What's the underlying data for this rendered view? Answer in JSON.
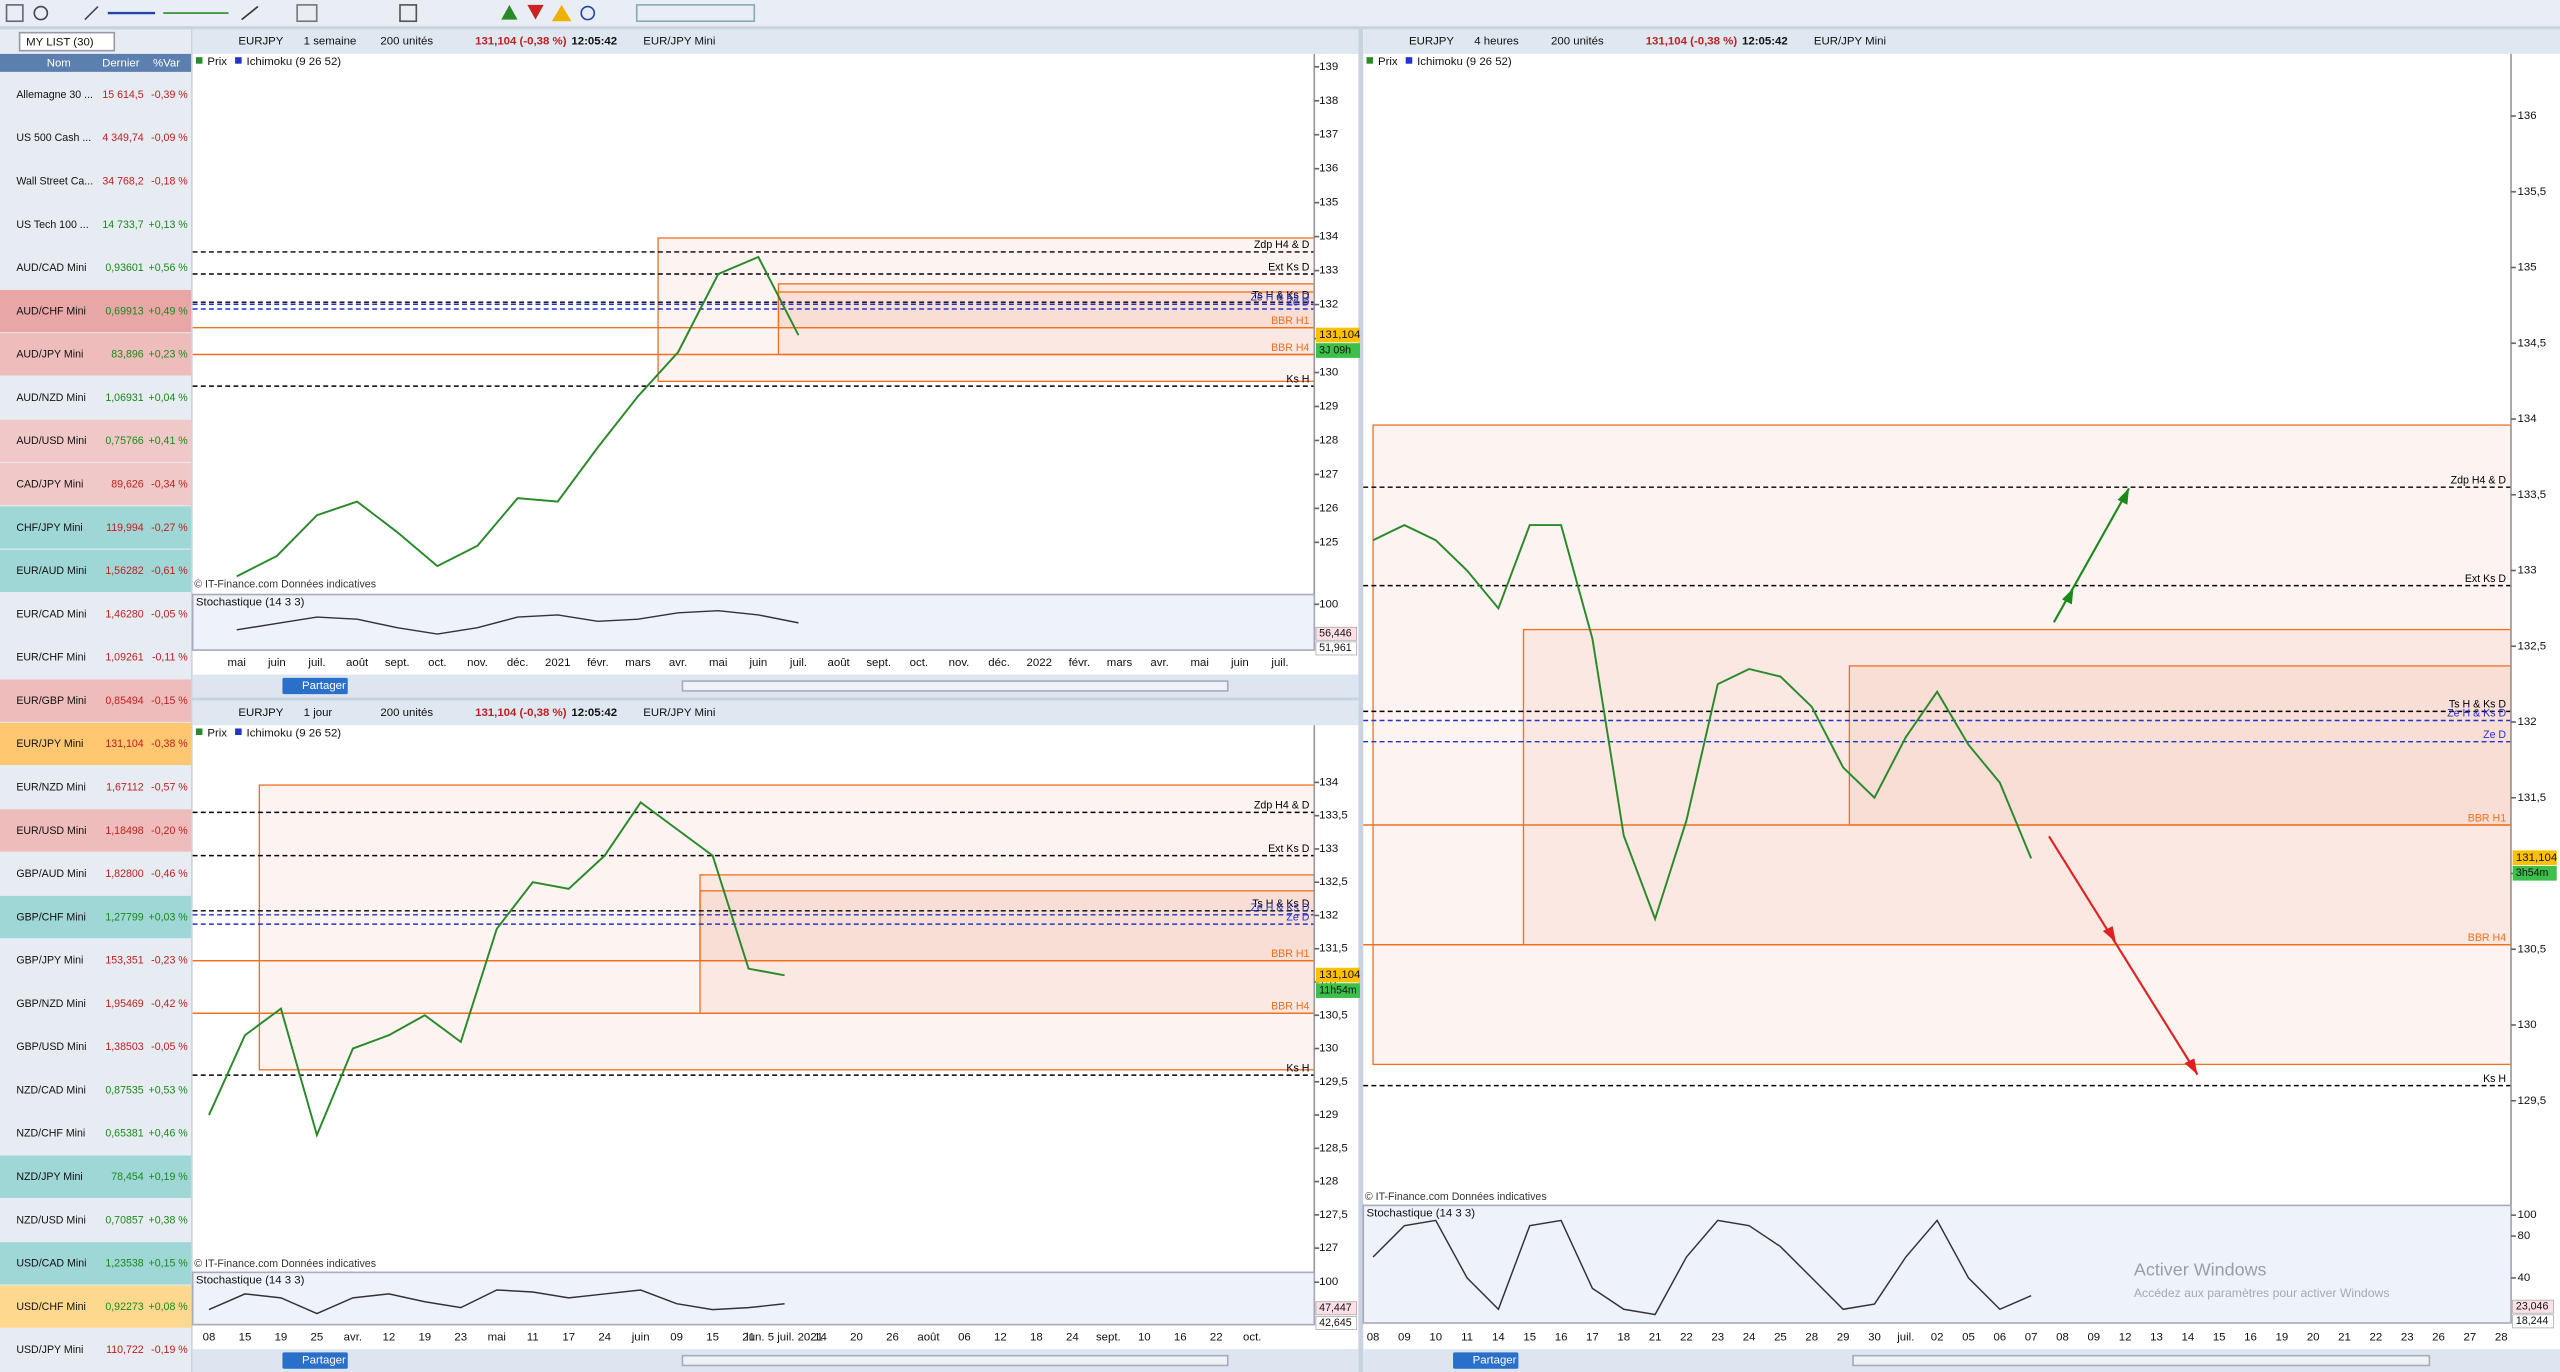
{
  "watchlist": {
    "title": "MY LIST (30)",
    "columns": [
      "Nom",
      "Dernier",
      "%Var"
    ],
    "rows": [
      {
        "name": "Allemagne 30 ...",
        "last": "15 614,5",
        "change": "-0,39 %",
        "color": "#e6ecf2"
      },
      {
        "name": "US 500 Cash ...",
        "last": "4 349,74",
        "change": "-0,09 %",
        "color": "#e6ecf2"
      },
      {
        "name": "Wall Street Ca...",
        "last": "34 768,2",
        "change": "-0,18 %",
        "color": "#e6ecf2"
      },
      {
        "name": "US Tech 100 ...",
        "last": "14 733,7",
        "change": "+0,13 %",
        "color": "#e6ecf2"
      },
      {
        "name": "AUD/CAD Mini",
        "last": "0,93601",
        "change": "+0,56 %",
        "color": "#e6ecf2"
      },
      {
        "name": "AUD/CHF Mini",
        "last": "0,69913",
        "change": "+0,49 %",
        "color": "#e8a6a6"
      },
      {
        "name": "AUD/JPY Mini",
        "last": "83,896",
        "change": "+0,23 %",
        "color": "#efbcbc"
      },
      {
        "name": "AUD/NZD Mini",
        "last": "1,06931",
        "change": "+0,04 %",
        "color": "#e6ecf2"
      },
      {
        "name": "AUD/USD Mini",
        "last": "0,75766",
        "change": "+0,41 %",
        "color": "#f0c8c8"
      },
      {
        "name": "CAD/JPY Mini",
        "last": "89,626",
        "change": "-0,34 %",
        "color": "#f0c8c8"
      },
      {
        "name": "CHF/JPY Mini",
        "last": "119,994",
        "change": "-0,27 %",
        "color": "#9fd6d6"
      },
      {
        "name": "EUR/AUD Mini",
        "last": "1,56282",
        "change": "-0,61 %",
        "color": "#9fd6d6"
      },
      {
        "name": "EUR/CAD Mini",
        "last": "1,46280",
        "change": "-0,05 %",
        "color": "#e6ecf2"
      },
      {
        "name": "EUR/CHF Mini",
        "last": "1,09261",
        "change": "-0,11 %",
        "color": "#e6ecf2"
      },
      {
        "name": "EUR/GBP Mini",
        "last": "0,85494",
        "change": "-0,15 %",
        "color": "#efbcbc"
      },
      {
        "name": "EUR/JPY Mini",
        "last": "131,104",
        "change": "-0,38 %",
        "color": "#ffc870"
      },
      {
        "name": "EUR/NZD Mini",
        "last": "1,67112",
        "change": "-0,57 %",
        "color": "#e6ecf2"
      },
      {
        "name": "EUR/USD Mini",
        "last": "1,18498",
        "change": "-0,20 %",
        "color": "#efbcbc"
      },
      {
        "name": "GBP/AUD Mini",
        "last": "1,82800",
        "change": "-0,46 %",
        "color": "#e6ecf2"
      },
      {
        "name": "GBP/CHF Mini",
        "last": "1,27799",
        "change": "+0,03 %",
        "color": "#9fd6d6"
      },
      {
        "name": "GBP/JPY Mini",
        "last": "153,351",
        "change": "-0,23 %",
        "color": "#e6ecf2"
      },
      {
        "name": "GBP/NZD Mini",
        "last": "1,95469",
        "change": "-0,42 %",
        "color": "#e6ecf2"
      },
      {
        "name": "GBP/USD Mini",
        "last": "1,38503",
        "change": "-0,05 %",
        "color": "#e6ecf2"
      },
      {
        "name": "NZD/CAD Mini",
        "last": "0,87535",
        "change": "+0,53 %",
        "color": "#e6ecf2"
      },
      {
        "name": "NZD/CHF Mini",
        "last": "0,65381",
        "change": "+0,46 %",
        "color": "#e6ecf2"
      },
      {
        "name": "NZD/JPY Mini",
        "last": "78,454",
        "change": "+0,19 %",
        "color": "#9fd6d6"
      },
      {
        "name": "NZD/USD Mini",
        "last": "0,70857",
        "change": "+0,38 %",
        "color": "#e6ecf2"
      },
      {
        "name": "USD/CAD Mini",
        "last": "1,23538",
        "change": "+0,15 %",
        "color": "#9fd6d6"
      },
      {
        "name": "USD/CHF Mini",
        "last": "0,92273",
        "change": "+0,08 %",
        "color": "#ffd890"
      },
      {
        "name": "USD/JPY Mini",
        "last": "110,722",
        "change": "-0,19 %",
        "color": "#e6ecf2"
      }
    ]
  },
  "chart_data": [
    {
      "type": "line",
      "symbol": "EURJPY",
      "timeframe": "1 semaine",
      "units": "200 unités",
      "quote": "131,104 (-0,38 %)",
      "time": "12:05:42",
      "instrument": "EUR/JPY Mini",
      "legend": [
        "Prix",
        "Ichimoku (9 26 52)"
      ],
      "watermark": "© IT-Finance.com Données indicatives",
      "share": "Partager",
      "color": "#2a8a2a",
      "categories": [
        "mai",
        "juin",
        "juil.",
        "août",
        "sept.",
        "oct.",
        "nov.",
        "déc.",
        "2021",
        "févr.",
        "mars",
        "avr.",
        "mai",
        "juin",
        "juil.",
        "août",
        "sept.",
        "oct.",
        "nov.",
        "déc.",
        "2022",
        "févr.",
        "mars",
        "avr.",
        "mai",
        "juin",
        "juil."
      ],
      "values": [
        124,
        124.6,
        125.8,
        126.2,
        125.3,
        124.3,
        124.9,
        126.3,
        126.2,
        127.8,
        129.3,
        130.6,
        132.9,
        133.4,
        131.1,
        null,
        null,
        null,
        null,
        null,
        null,
        null,
        null,
        null,
        null,
        null,
        null
      ],
      "ylim": [
        123.56,
        139.38
      ],
      "yticks": [
        139,
        138,
        137,
        136,
        135,
        134,
        133,
        132,
        131,
        130,
        129,
        128,
        127,
        126,
        125
      ],
      "levels": [
        {
          "name": "Zdp H4 & D",
          "value": 133.55,
          "color": "#000000",
          "dashed": true
        },
        {
          "name": "Ext Ks D",
          "value": 132.9,
          "color": "#000000",
          "dashed": true
        },
        {
          "name": "Ts H & Ks D",
          "value": 132.07,
          "color": "#000000",
          "dashed": true
        },
        {
          "name": "Ze H & Ks D",
          "value": 132.01,
          "color": "#2233cc",
          "dashed": true
        },
        {
          "name": "Ze D",
          "value": 131.87,
          "color": "#2233cc",
          "dashed": true
        },
        {
          "name": "BBR H1",
          "value": 131.32,
          "color": "#f07020",
          "dashed": false
        },
        {
          "name": "BBR H4",
          "value": 130.53,
          "color": "#f07020",
          "dashed": false
        },
        {
          "name": "Ks H",
          "value": 129.6,
          "color": "#000000",
          "dashed": true
        }
      ],
      "zones": [
        {
          "x": 10.5,
          "ylim": [
            129.74,
            133.96
          ]
        },
        {
          "x": 13.5,
          "ylim": [
            130.53,
            132.61
          ]
        },
        {
          "x": 13.5,
          "ylim": [
            131.32,
            132.37
          ]
        }
      ],
      "last": {
        "value": 131.104,
        "label": "131,104"
      },
      "countdown": "3J 09h",
      "stochastic": {
        "title": "Stochastique (14 3 3)",
        "ylim": [
          0,
          100
        ],
        "yticks": [
          100
        ],
        "values": [
          40,
          55,
          70,
          65,
          45,
          30,
          45,
          70,
          75,
          60,
          65,
          80,
          85,
          75,
          56.4,
          null,
          null,
          null,
          null,
          null,
          null,
          null,
          null,
          null,
          null,
          null,
          null
        ],
        "last": [
          {
            "value": 56.446,
            "label": "56,446"
          },
          {
            "value": 51.961,
            "label": "51,961"
          }
        ]
      }
    },
    {
      "type": "line",
      "symbol": "EURJPY",
      "timeframe": "1 jour",
      "units": "200 unités",
      "quote": "131,104 (-0,38 %)",
      "time": "12:05:42",
      "instrument": "EUR/JPY Mini",
      "legend": [
        "Prix",
        "Ichimoku (9 26 52)"
      ],
      "watermark": "© IT-Finance.com Données indicatives",
      "share": "Partager",
      "color": "#2a8a2a",
      "categories": [
        "08",
        "15",
        "19",
        "25",
        "avr.",
        "12",
        "19",
        "23",
        "mai",
        "11",
        "17",
        "24",
        "juin",
        "09",
        "15",
        "21",
        "lun. 5 juil. 2021",
        "14",
        "20",
        "26",
        "août",
        "06",
        "12",
        "18",
        "24",
        "sept.",
        "10",
        "16",
        "22",
        "oct."
      ],
      "values": [
        129,
        130.2,
        130.6,
        128.7,
        130,
        130.2,
        130.5,
        130.1,
        131.8,
        132.5,
        132.4,
        132.9,
        133.7,
        133.3,
        132.9,
        131.2,
        131.1,
        null,
        null,
        null,
        null,
        null,
        null,
        null,
        null,
        null,
        null,
        null,
        null,
        null
      ],
      "ylim": [
        126.66,
        134.86
      ],
      "yticks": [
        134,
        {
          "value": 133.5,
          "label": "133,5"
        },
        133,
        {
          "value": 132.5,
          "label": "132,5"
        },
        132,
        {
          "value": 131.5,
          "label": "131,5"
        },
        131,
        {
          "value": 130.5,
          "label": "130,5"
        },
        130,
        {
          "value": 129.5,
          "label": "129,5"
        },
        129,
        {
          "value": 128.5,
          "label": "128,5"
        },
        128,
        {
          "value": 127.5,
          "label": "127,5"
        },
        127
      ],
      "levels": [
        {
          "name": "Zdp H4 & D",
          "value": 133.55,
          "color": "#000000",
          "dashed": true
        },
        {
          "name": "Ext Ks D",
          "value": 132.9,
          "color": "#000000",
          "dashed": true
        },
        {
          "name": "Ts H & Ks D",
          "value": 132.07,
          "color": "#000000",
          "dashed": true
        },
        {
          "name": "Ze H & Ks D",
          "value": 132.01,
          "color": "#2233cc",
          "dashed": true
        },
        {
          "name": "Ze D",
          "value": 131.87,
          "color": "#2233cc",
          "dashed": true
        },
        {
          "name": "BBR H1",
          "value": 131.32,
          "color": "#f07020",
          "dashed": false
        },
        {
          "name": "BBR H4",
          "value": 130.53,
          "color": "#f07020",
          "dashed": false
        },
        {
          "name": "Ks H",
          "value": 129.6,
          "color": "#000000",
          "dashed": true
        }
      ],
      "zones": [
        {
          "x": 1.4,
          "ylim": [
            129.68,
            133.96
          ]
        },
        {
          "x": 13.65,
          "ylim": [
            130.53,
            132.61
          ]
        },
        {
          "x": 13.65,
          "ylim": [
            131.32,
            132.37
          ]
        }
      ],
      "last": {
        "value": 131.104,
        "label": "131,104"
      },
      "countdown": "11h54m",
      "stochastic": {
        "title": "Stochastique (14 3 3)",
        "ylim": [
          0,
          100
        ],
        "yticks": [
          100
        ],
        "values": [
          30,
          70,
          60,
          20,
          60,
          70,
          50,
          35,
          80,
          75,
          60,
          70,
          80,
          45,
          30,
          35,
          45,
          null,
          null,
          null,
          null,
          null,
          null,
          null,
          null,
          null,
          null,
          null,
          null,
          null
        ],
        "last": [
          {
            "value": 47.447,
            "label": "47,447"
          },
          {
            "value": 42.645,
            "label": "42,645"
          }
        ]
      }
    },
    {
      "type": "line",
      "symbol": "EURJPY",
      "timeframe": "4 heures",
      "units": "200 unités",
      "quote": "131,104 (-0,38 %)",
      "time": "12:05:42",
      "instrument": "EUR/JPY Mini",
      "legend": [
        "Prix",
        "Ichimoku (9 26 52)"
      ],
      "watermark": "© IT-Finance.com Données indicatives",
      "share": "Partager",
      "color": "#2a8a2a",
      "categories": [
        "08",
        "09",
        "10",
        "11",
        "14",
        "15",
        "16",
        "17",
        "18",
        "21",
        "22",
        "23",
        "24",
        "25",
        "28",
        "29",
        "30",
        "juil.",
        "02",
        "05",
        "06",
        "07",
        "08",
        "09",
        "12",
        "13",
        "14",
        "15",
        "16",
        "19",
        "20",
        "21",
        "22",
        "23",
        "26",
        "27",
        "28"
      ],
      "values": [
        133.2,
        133.3,
        133.2,
        133.0,
        132.75,
        133.3,
        133.3,
        132.55,
        131.25,
        130.7,
        131.35,
        132.25,
        132.35,
        132.3,
        132.1,
        131.7,
        131.5,
        131.9,
        132.2,
        131.85,
        131.6,
        131.1,
        null,
        null,
        null,
        null,
        null,
        null,
        null,
        null,
        null,
        null,
        null,
        null,
        null,
        null,
        null
      ],
      "ylim": [
        128.82,
        136.41
      ],
      "yticks": [
        136,
        {
          "value": 135.5,
          "label": "135,5"
        },
        135,
        {
          "value": 134.5,
          "label": "134,5"
        },
        134,
        {
          "value": 133.5,
          "label": "133,5"
        },
        133,
        {
          "value": 132.5,
          "label": "132,5"
        },
        132,
        {
          "value": 131.5,
          "label": "131,5"
        },
        131,
        {
          "value": 130.5,
          "label": "130,5"
        },
        130,
        {
          "value": 129.5,
          "label": "129,5"
        }
      ],
      "levels": [
        {
          "name": "Zdp H4 & D",
          "value": 133.55,
          "color": "#000000",
          "dashed": true
        },
        {
          "name": "Ext Ks D",
          "value": 132.9,
          "color": "#000000",
          "dashed": true
        },
        {
          "name": "Ts H & Ks D",
          "value": 132.07,
          "color": "#000000",
          "dashed": true
        },
        {
          "name": "Ze H & Ks D",
          "value": 132.01,
          "color": "#2233cc",
          "dashed": true
        },
        {
          "name": "Ze D",
          "value": 131.87,
          "color": "#2233cc",
          "dashed": true
        },
        {
          "name": "BBR H1",
          "value": 131.32,
          "color": "#f07020",
          "dashed": false
        },
        {
          "name": "BBR H4",
          "value": 130.53,
          "color": "#f07020",
          "dashed": false
        },
        {
          "name": "Ks H",
          "value": 129.6,
          "color": "#000000",
          "dashed": true
        }
      ],
      "zones": [
        {
          "x": 0,
          "ylim": [
            129.74,
            133.96
          ]
        },
        {
          "x": 4.8,
          "ylim": [
            130.53,
            132.61
          ]
        },
        {
          "x": 15.2,
          "ylim": [
            131.32,
            132.37
          ]
        }
      ],
      "last": {
        "value": 131.104,
        "label": "131,104"
      },
      "countdown": "3h54m",
      "stochastic": {
        "title": "Stochastique (14 3 3)",
        "ylim": [
          0,
          100
        ],
        "yticks": [
          100,
          80,
          40
        ],
        "values": [
          60,
          90,
          95,
          40,
          10,
          90,
          95,
          30,
          10,
          5,
          60,
          95,
          90,
          70,
          40,
          10,
          15,
          60,
          95,
          40,
          10,
          23,
          null,
          null,
          null,
          null,
          null,
          null,
          null,
          null,
          null,
          null,
          null,
          null,
          null,
          null,
          null
        ],
        "last": [
          {
            "value": 23.046,
            "label": "23,046"
          },
          {
            "value": 18.244,
            "label": "18,244"
          }
        ]
      }
    }
  ],
  "windows_notice": {
    "title": "Activer Windows",
    "text": "Accédez aux paramètres pour activer Windows"
  }
}
